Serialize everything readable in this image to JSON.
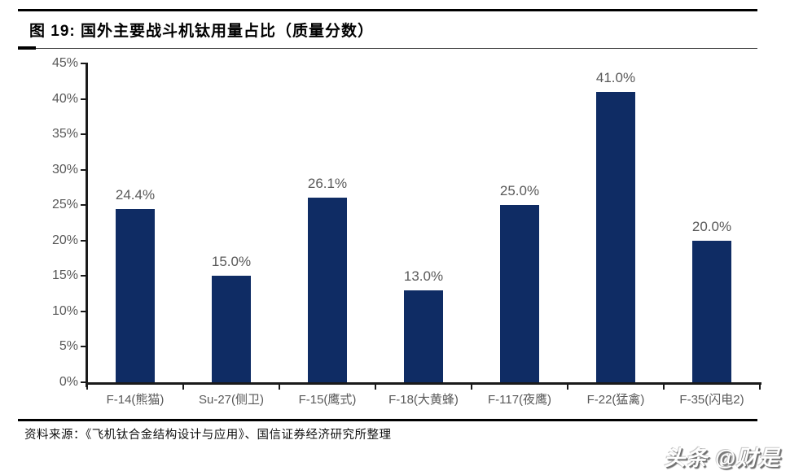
{
  "header": {
    "title": "图 19:  国外主要战斗机钛用量占比（质量分数）"
  },
  "chart_data": {
    "type": "bar",
    "title": "国外主要战斗机钛用量占比（质量分数）",
    "categories": [
      "F-14(熊猫)",
      "Su-27(侧卫)",
      "F-15(鹰式)",
      "F-18(大黄蜂)",
      "F-117(夜鹰)",
      "F-22(猛禽)",
      "F-35(闪电2)"
    ],
    "values": [
      24.4,
      15.0,
      26.1,
      13.0,
      25.0,
      41.0,
      20.0
    ],
    "value_labels": [
      "24.4%",
      "15.0%",
      "26.1%",
      "13.0%",
      "25.0%",
      "41.0%",
      "20.0%"
    ],
    "xlabel": "",
    "ylabel": "",
    "ylim": [
      0,
      45
    ],
    "ytick_step": 5,
    "ytick_labels": [
      "0%",
      "5%",
      "10%",
      "15%",
      "20%",
      "25%",
      "30%",
      "35%",
      "40%",
      "45%"
    ],
    "grid": false,
    "legend": false,
    "bar_color": "#0f2c64",
    "value_label_color": "#595959"
  },
  "footer": {
    "source": "资料来源：《飞机钛合金结构设计与应用》、国信证券经济研究所整理",
    "watermark": "头条 @财是"
  },
  "colors": {
    "bar": "#0f2c64",
    "axis_text": "#595959",
    "axis_line": "#1a1a1a",
    "rule": "#000000"
  }
}
